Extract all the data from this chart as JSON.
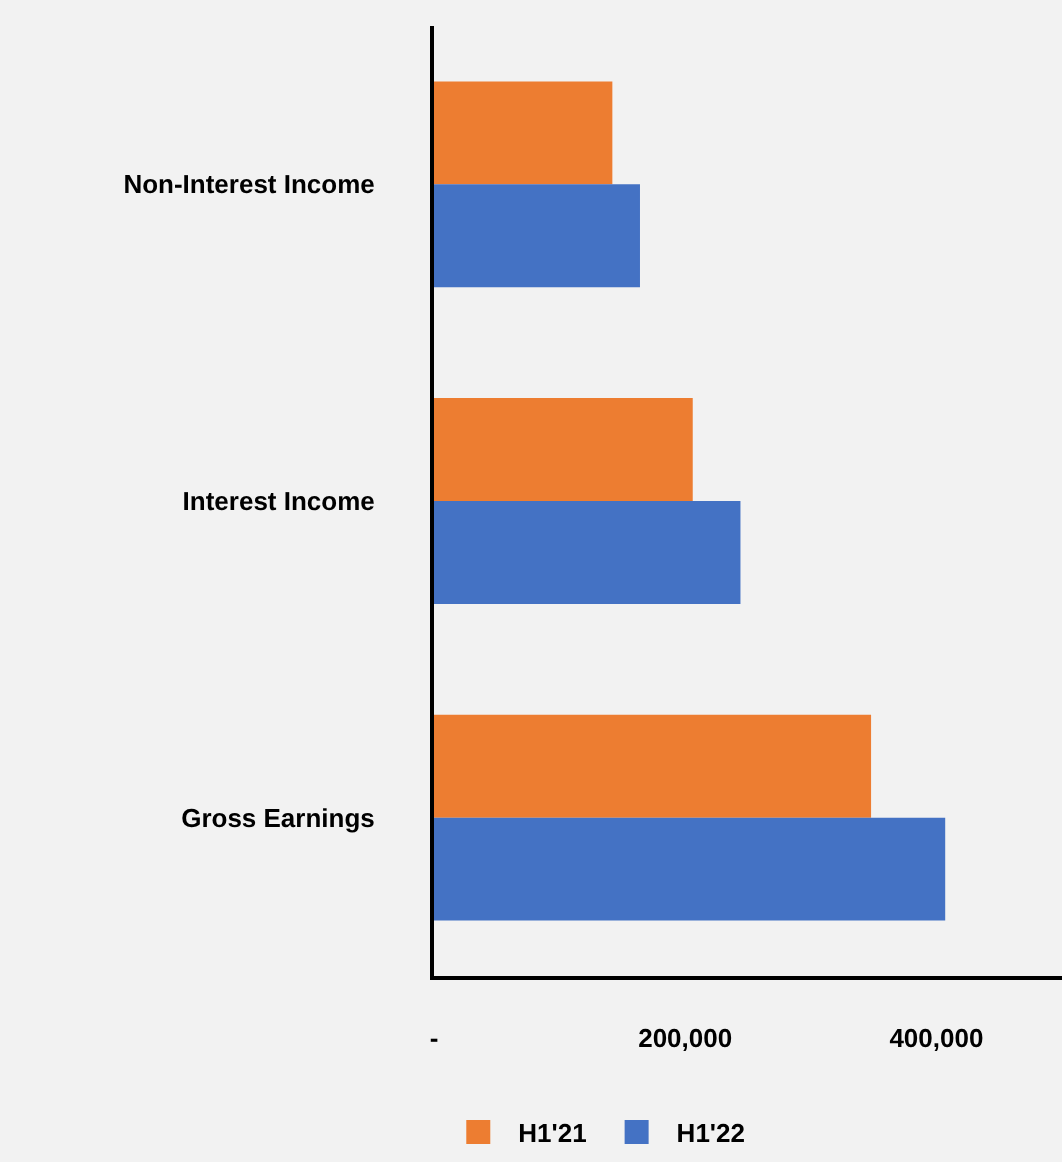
{
  "chart_data": {
    "type": "bar",
    "orientation": "horizontal",
    "categories": [
      "Non-Interest Income",
      "Interest Income",
      "Gross Earnings"
    ],
    "series": [
      {
        "name": "H1'21",
        "color": "#ed7d31",
        "values": [
          142000,
          206000,
          348000
        ]
      },
      {
        "name": "H1'22",
        "color": "#4472c4",
        "values": [
          164000,
          244000,
          407000
        ]
      }
    ],
    "xlim": [
      0,
      500000
    ],
    "xticks": [
      {
        "value": 0,
        "label": "-"
      },
      {
        "value": 200000,
        "label": "200,000"
      },
      {
        "value": 400000,
        "label": "400,000"
      }
    ],
    "grid": false,
    "legend": "bottom"
  }
}
